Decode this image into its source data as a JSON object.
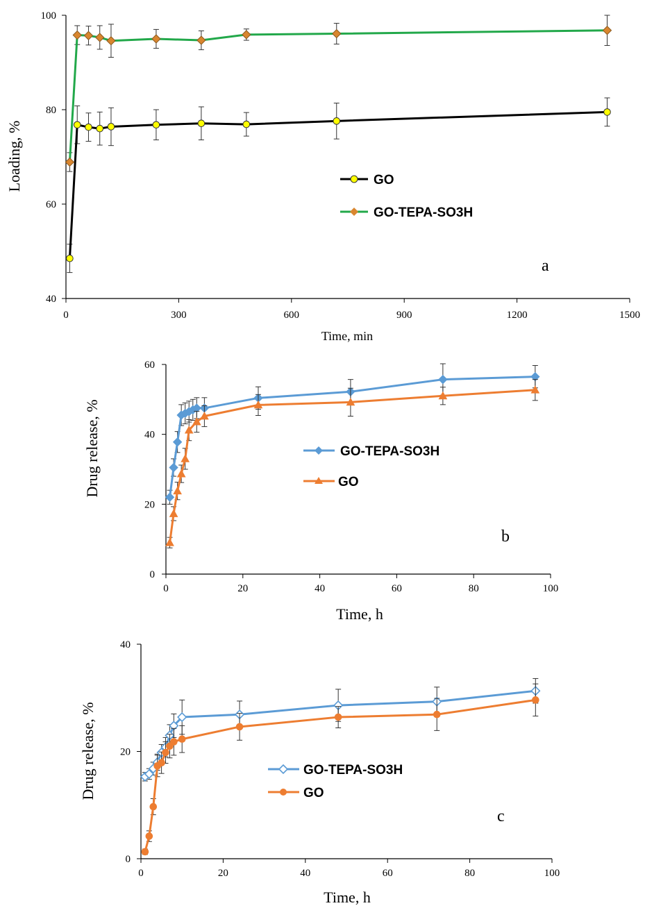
{
  "colors": {
    "axis": "#000000",
    "errorbar": "#333333"
  },
  "chart_data": [
    {
      "id": "a",
      "type": "line",
      "panel_letter": "a",
      "xlabel": "Time, min",
      "ylabel": "Loading, %",
      "xlim": [
        0,
        1500
      ],
      "ylim": [
        40,
        100
      ],
      "xticks": [
        0,
        300,
        600,
        900,
        1200,
        1500
      ],
      "yticks": [
        40,
        60,
        80,
        100
      ],
      "legend_position": "center-right",
      "grid": false,
      "series": [
        {
          "name": "GO",
          "color": "#000000",
          "marker": "circle",
          "marker_fill": "#ffff00",
          "marker_stroke": "#333333",
          "x": [
            10,
            30,
            60,
            90,
            120,
            240,
            360,
            480,
            720,
            1440
          ],
          "y": [
            48.5,
            76.8,
            76.3,
            76.0,
            76.4,
            76.8,
            77.1,
            76.9,
            77.6,
            79.5
          ],
          "err": [
            3.0,
            4.0,
            3.0,
            3.5,
            4.0,
            3.2,
            3.5,
            2.5,
            3.8,
            3.0
          ]
        },
        {
          "name": "GO-TEPA-SO3H",
          "color": "#22a84a",
          "marker": "diamond",
          "marker_fill": "#d9862f",
          "marker_stroke": "#8a5a20",
          "x": [
            10,
            30,
            60,
            90,
            120,
            240,
            360,
            480,
            720,
            1440
          ],
          "y": [
            68.9,
            95.8,
            95.7,
            95.3,
            94.6,
            95.0,
            94.7,
            95.9,
            96.1,
            96.8
          ],
          "err": [
            2.0,
            2.0,
            2.0,
            2.5,
            3.5,
            2.0,
            2.0,
            1.2,
            2.2,
            3.2
          ]
        }
      ]
    },
    {
      "id": "b",
      "type": "line",
      "panel_letter": "b",
      "xlabel": "Time,  h",
      "ylabel": "Drug release,  %",
      "xlim": [
        0,
        100
      ],
      "ylim": [
        0,
        60
      ],
      "xticks": [
        0,
        20,
        40,
        60,
        80,
        100
      ],
      "yticks": [
        0,
        20,
        40,
        60
      ],
      "legend_position": "center",
      "grid": false,
      "series": [
        {
          "name": "GO-TEPA-SO3H",
          "color": "#5b9bd5",
          "marker": "diamond",
          "marker_fill": "#5b9bd5",
          "marker_stroke": "#5b9bd5",
          "x": [
            1,
            2,
            3,
            4,
            5,
            6,
            7,
            8,
            10,
            24,
            48,
            72,
            96
          ],
          "y": [
            22.0,
            30.5,
            37.8,
            45.5,
            46.0,
            46.5,
            47.0,
            47.5,
            47.5,
            50.4,
            52.2,
            55.7,
            56.5
          ],
          "err": [
            2.0,
            2.5,
            3.0,
            3.0,
            3.0,
            3.0,
            3.0,
            3.0,
            3.0,
            3.2,
            3.5,
            4.5,
            3.2
          ]
        },
        {
          "name": "GO",
          "color": "#ed7d31",
          "marker": "triangle",
          "marker_fill": "#ed7d31",
          "marker_stroke": "#ed7d31",
          "x": [
            1,
            2,
            3,
            4,
            5,
            6,
            8,
            10,
            24,
            48,
            72,
            96
          ],
          "y": [
            9.0,
            17.3,
            23.8,
            28.7,
            33.0,
            41.2,
            43.6,
            45.2,
            48.4,
            49.2,
            51.0,
            52.7
          ],
          "err": [
            1.5,
            2.0,
            2.5,
            2.5,
            3.0,
            3.0,
            3.0,
            3.0,
            3.0,
            4.0,
            2.5,
            3.0
          ]
        }
      ]
    },
    {
      "id": "c",
      "type": "line",
      "panel_letter": "c",
      "xlabel": "Time, h",
      "ylabel": "Drug release,  %",
      "xlim": [
        0,
        100
      ],
      "ylim": [
        0,
        40
      ],
      "xticks": [
        0,
        20,
        40,
        60,
        80,
        100
      ],
      "yticks": [
        0,
        20,
        40
      ],
      "legend_position": "center-left",
      "grid": false,
      "series": [
        {
          "name": "GO-TEPA-SO3H",
          "color": "#5b9bd5",
          "marker": "diamond-open",
          "marker_fill": "#ffffff",
          "marker_stroke": "#5b9bd5",
          "x": [
            1,
            2,
            3,
            4,
            5,
            6,
            7,
            8,
            10,
            24,
            48,
            72,
            96
          ],
          "y": [
            15.3,
            15.8,
            16.8,
            18.0,
            19.8,
            20.8,
            23.0,
            24.8,
            26.4,
            26.9,
            28.6,
            29.3,
            31.3
          ],
          "err": [
            0.8,
            1.0,
            1.2,
            1.5,
            1.5,
            1.8,
            2.0,
            2.2,
            3.2,
            2.5,
            3.0,
            2.7,
            2.3
          ]
        },
        {
          "name": "GO",
          "color": "#ed7d31",
          "marker": "circle",
          "marker_fill": "#ed7d31",
          "marker_stroke": "#ed7d31",
          "x": [
            1,
            2,
            3,
            4,
            5,
            6,
            7,
            8,
            10,
            24,
            48,
            72,
            96
          ],
          "y": [
            1.3,
            4.2,
            9.7,
            17.3,
            17.9,
            19.8,
            21.0,
            21.8,
            22.3,
            24.6,
            26.4,
            26.9,
            29.6
          ],
          "err": [
            0.5,
            1.0,
            1.5,
            2.0,
            2.0,
            2.0,
            2.2,
            2.5,
            2.5,
            2.5,
            2.0,
            3.0,
            3.0
          ]
        }
      ]
    }
  ]
}
